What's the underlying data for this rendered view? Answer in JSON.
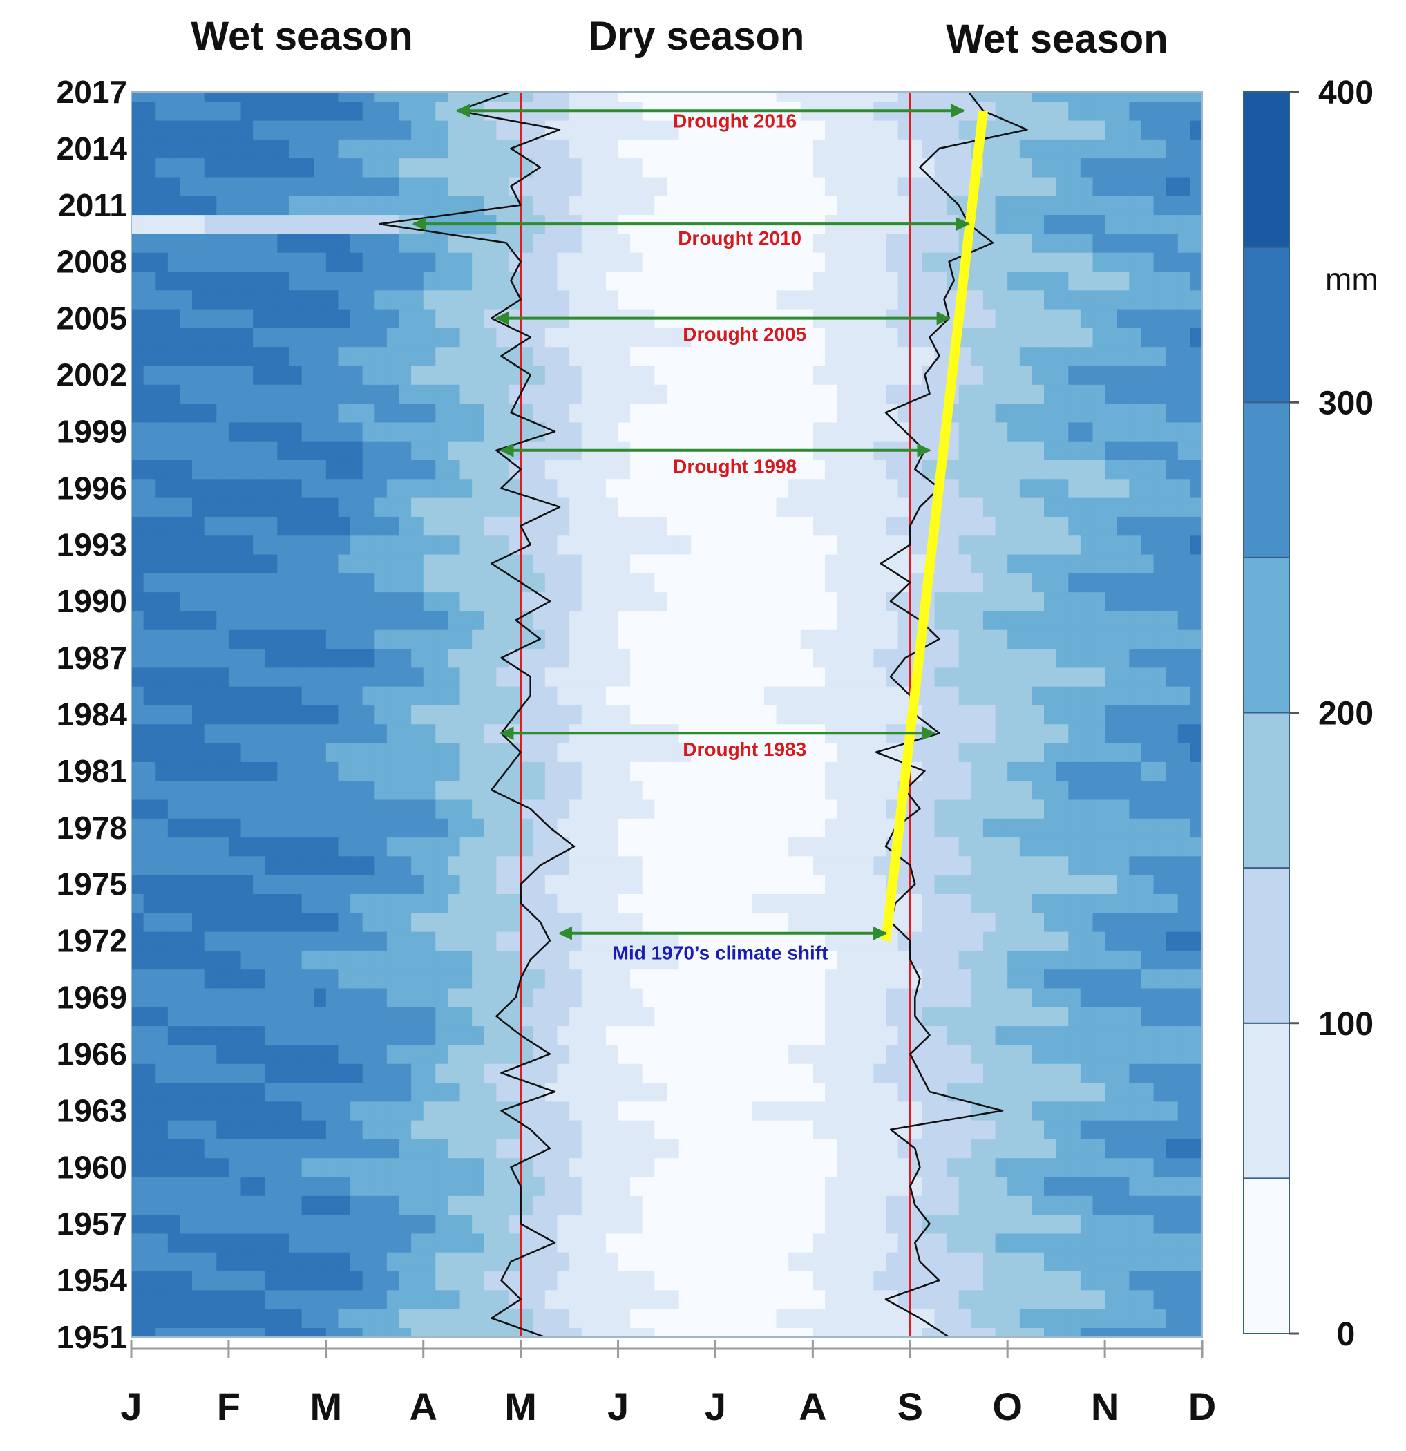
{
  "chart_data": {
    "type": "heatmap",
    "title": "",
    "xlabel": "",
    "ylabel": "",
    "unit": "mm",
    "season_labels": [
      "Wet season",
      "Dry season",
      "Wet season"
    ],
    "months": [
      "J",
      "F",
      "M",
      "A",
      "M",
      "J",
      "J",
      "A",
      "S",
      "O",
      "N",
      "D"
    ],
    "year_ticks": [
      2017,
      2014,
      2011,
      2008,
      2005,
      2002,
      1999,
      1996,
      1993,
      1990,
      1987,
      1984,
      1981,
      1978,
      1975,
      1972,
      1969,
      1966,
      1963,
      1960,
      1957,
      1954,
      1951
    ],
    "year_range": [
      1951,
      2017
    ],
    "colorbar": {
      "ticks": [
        0,
        100,
        200,
        300,
        400
      ],
      "range": [
        0,
        400
      ],
      "levels": [
        0,
        50,
        100,
        150,
        200,
        250,
        300,
        350,
        400
      ],
      "colors": [
        "#f7fbff",
        "#dde9f7",
        "#c2d7ef",
        "#9ecae1",
        "#6baed6",
        "#4a90c8",
        "#2f75b8",
        "#1a5aa3",
        "#0c3d85"
      ]
    },
    "monthly_precip_mm_climatology": [
      {
        "month": "J",
        "value": 305
      },
      {
        "month": "F",
        "value": 300
      },
      {
        "month": "M",
        "value": 290
      },
      {
        "month": "A",
        "value": 225
      },
      {
        "month": "M",
        "value": 150
      },
      {
        "month": "J",
        "value": 55
      },
      {
        "month": "J",
        "value": 30
      },
      {
        "month": "A",
        "value": 45
      },
      {
        "month": "S",
        "value": 110
      },
      {
        "month": "O",
        "value": 185
      },
      {
        "month": "N",
        "value": 235
      },
      {
        "month": "D",
        "value": 270
      }
    ],
    "reference_lines": [
      {
        "month": "M",
        "color": "#e41a1c"
      },
      {
        "month": "S",
        "color": "#e41a1c"
      }
    ],
    "trend_line": {
      "color": "#ffff1a",
      "points": [
        {
          "year": 1972,
          "month": 8.75
        },
        {
          "year": 2016,
          "month": 9.75
        }
      ]
    },
    "dry_season_onset": [
      {
        "year": 2017,
        "month": 4.9
      },
      {
        "year": 2016,
        "month": 4.35
      },
      {
        "year": 2015,
        "month": 5.4
      },
      {
        "year": 2014,
        "month": 4.9
      },
      {
        "year": 2013,
        "month": 5.2
      },
      {
        "year": 2012,
        "month": 4.9
      },
      {
        "year": 2011,
        "month": 5.0
      },
      {
        "year": 2010,
        "month": 3.55
      },
      {
        "year": 2009,
        "month": 4.85
      },
      {
        "year": 2008,
        "month": 5.0
      },
      {
        "year": 2007,
        "month": 4.9
      },
      {
        "year": 2006,
        "month": 5.0
      },
      {
        "year": 2005,
        "month": 4.7
      },
      {
        "year": 2004,
        "month": 5.1
      },
      {
        "year": 2003,
        "month": 4.8
      },
      {
        "year": 2002,
        "month": 5.1
      },
      {
        "year": 2001,
        "month": 5.0
      },
      {
        "year": 2000,
        "month": 4.9
      },
      {
        "year": 1999,
        "month": 5.35
      },
      {
        "year": 1998,
        "month": 4.75
      },
      {
        "year": 1997,
        "month": 5.0
      },
      {
        "year": 1996,
        "month": 4.8
      },
      {
        "year": 1995,
        "month": 5.4
      },
      {
        "year": 1994,
        "month": 5.0
      },
      {
        "year": 1993,
        "month": 5.1
      },
      {
        "year": 1992,
        "month": 4.7
      },
      {
        "year": 1991,
        "month": 5.0
      },
      {
        "year": 1990,
        "month": 5.3
      },
      {
        "year": 1989,
        "month": 4.95
      },
      {
        "year": 1988,
        "month": 5.2
      },
      {
        "year": 1987,
        "month": 4.8
      },
      {
        "year": 1986,
        "month": 5.1
      },
      {
        "year": 1985,
        "month": 5.1
      },
      {
        "year": 1984,
        "month": 4.95
      },
      {
        "year": 1983,
        "month": 4.8
      },
      {
        "year": 1982,
        "month": 5.0
      },
      {
        "year": 1981,
        "month": 4.85
      },
      {
        "year": 1980,
        "month": 4.7
      },
      {
        "year": 1979,
        "month": 5.1
      },
      {
        "year": 1978,
        "month": 5.3
      },
      {
        "year": 1977,
        "month": 5.55
      },
      {
        "year": 1976,
        "month": 5.2
      },
      {
        "year": 1975,
        "month": 5.0
      },
      {
        "year": 1974,
        "month": 5.0
      },
      {
        "year": 1973,
        "month": 5.2
      },
      {
        "year": 1972,
        "month": 5.3
      },
      {
        "year": 1971,
        "month": 5.1
      },
      {
        "year": 1970,
        "month": 5.0
      },
      {
        "year": 1969,
        "month": 4.95
      },
      {
        "year": 1968,
        "month": 4.75
      },
      {
        "year": 1967,
        "month": 5.0
      },
      {
        "year": 1966,
        "month": 5.3
      },
      {
        "year": 1965,
        "month": 4.8
      },
      {
        "year": 1964,
        "month": 5.35
      },
      {
        "year": 1963,
        "month": 4.8
      },
      {
        "year": 1962,
        "month": 5.1
      },
      {
        "year": 1961,
        "month": 5.3
      },
      {
        "year": 1960,
        "month": 4.9
      },
      {
        "year": 1959,
        "month": 5.0
      },
      {
        "year": 1958,
        "month": 5.0
      },
      {
        "year": 1957,
        "month": 5.0
      },
      {
        "year": 1956,
        "month": 5.35
      },
      {
        "year": 1955,
        "month": 4.9
      },
      {
        "year": 1954,
        "month": 4.8
      },
      {
        "year": 1953,
        "month": 5.0
      },
      {
        "year": 1952,
        "month": 4.7
      },
      {
        "year": 1951,
        "month": 5.25
      }
    ],
    "wet_season_onset": [
      {
        "year": 2017,
        "month": 9.6
      },
      {
        "year": 2016,
        "month": 9.75
      },
      {
        "year": 2015,
        "month": 10.2
      },
      {
        "year": 2014,
        "month": 9.3
      },
      {
        "year": 2013,
        "month": 9.1
      },
      {
        "year": 2012,
        "month": 9.3
      },
      {
        "year": 2011,
        "month": 9.5
      },
      {
        "year": 2010,
        "month": 9.6
      },
      {
        "year": 2009,
        "month": 9.85
      },
      {
        "year": 2008,
        "month": 9.4
      },
      {
        "year": 2007,
        "month": 9.45
      },
      {
        "year": 2006,
        "month": 9.35
      },
      {
        "year": 2005,
        "month": 9.4
      },
      {
        "year": 2004,
        "month": 9.2
      },
      {
        "year": 2003,
        "month": 9.3
      },
      {
        "year": 2002,
        "month": 9.15
      },
      {
        "year": 2001,
        "month": 9.2
      },
      {
        "year": 2000,
        "month": 8.75
      },
      {
        "year": 1999,
        "month": 8.95
      },
      {
        "year": 1998,
        "month": 9.15
      },
      {
        "year": 1997,
        "month": 9.05
      },
      {
        "year": 1996,
        "month": 9.3
      },
      {
        "year": 1995,
        "month": 9.1
      },
      {
        "year": 1994,
        "month": 9.0
      },
      {
        "year": 1993,
        "month": 9.0
      },
      {
        "year": 1992,
        "month": 8.7
      },
      {
        "year": 1991,
        "month": 9.0
      },
      {
        "year": 1990,
        "month": 8.8
      },
      {
        "year": 1989,
        "month": 9.1
      },
      {
        "year": 1988,
        "month": 9.3
      },
      {
        "year": 1987,
        "month": 8.95
      },
      {
        "year": 1986,
        "month": 8.8
      },
      {
        "year": 1985,
        "month": 9.0
      },
      {
        "year": 1984,
        "month": 9.05
      },
      {
        "year": 1983,
        "month": 9.3
      },
      {
        "year": 1982,
        "month": 8.65
      },
      {
        "year": 1981,
        "month": 9.15
      },
      {
        "year": 1980,
        "month": 8.95
      },
      {
        "year": 1979,
        "month": 9.1
      },
      {
        "year": 1978,
        "month": 8.85
      },
      {
        "year": 1977,
        "month": 8.75
      },
      {
        "year": 1976,
        "month": 9.0
      },
      {
        "year": 1975,
        "month": 9.05
      },
      {
        "year": 1974,
        "month": 8.85
      },
      {
        "year": 1973,
        "month": 8.8
      },
      {
        "year": 1972,
        "month": 9.0
      },
      {
        "year": 1971,
        "month": 9.0
      },
      {
        "year": 1970,
        "month": 9.1
      },
      {
        "year": 1969,
        "month": 9.05
      },
      {
        "year": 1968,
        "month": 9.05
      },
      {
        "year": 1967,
        "month": 9.2
      },
      {
        "year": 1966,
        "month": 9.0
      },
      {
        "year": 1965,
        "month": 9.1
      },
      {
        "year": 1964,
        "month": 9.2
      },
      {
        "year": 1963,
        "month": 9.95
      },
      {
        "year": 1962,
        "month": 8.8
      },
      {
        "year": 1961,
        "month": 9.05
      },
      {
        "year": 1960,
        "month": 9.1
      },
      {
        "year": 1959,
        "month": 9.0
      },
      {
        "year": 1958,
        "month": 9.05
      },
      {
        "year": 1957,
        "month": 9.2
      },
      {
        "year": 1956,
        "month": 9.05
      },
      {
        "year": 1955,
        "month": 9.1
      },
      {
        "year": 1954,
        "month": 9.3
      },
      {
        "year": 1953,
        "month": 8.75
      },
      {
        "year": 1952,
        "month": 9.1
      },
      {
        "year": 1951,
        "month": 9.4
      }
    ],
    "annotations": [
      {
        "label": "Drought 2016",
        "year": 2016,
        "y_label": 2015.4,
        "from_month": 4.35,
        "to_month": 9.55,
        "label_month": 7.2,
        "label_color": "#d7191c"
      },
      {
        "label": "Drought 2010",
        "year": 2010,
        "y_label": 2009.2,
        "from_month": 3.9,
        "to_month": 9.6,
        "label_month": 7.25,
        "label_color": "#d7191c"
      },
      {
        "label": "Drought 2005",
        "year": 2005,
        "y_label": 2004.1,
        "from_month": 4.75,
        "to_month": 9.4,
        "label_month": 7.3,
        "label_color": "#d7191c"
      },
      {
        "label": "Drought 1998",
        "year": 1998,
        "y_label": 1997.1,
        "from_month": 4.8,
        "to_month": 9.2,
        "label_month": 7.2,
        "label_color": "#d7191c"
      },
      {
        "label": "Drought 1983",
        "year": 1983,
        "y_label": 1982.1,
        "from_month": 4.8,
        "to_month": 9.25,
        "label_month": 7.3,
        "label_color": "#d7191c"
      },
      {
        "label": "Mid 1970’s climate shift",
        "year": 1972.4,
        "y_label": 1971.3,
        "from_month": 5.4,
        "to_month": 8.75,
        "label_month": 7.05,
        "label_color": "#1a1ab4"
      }
    ]
  }
}
